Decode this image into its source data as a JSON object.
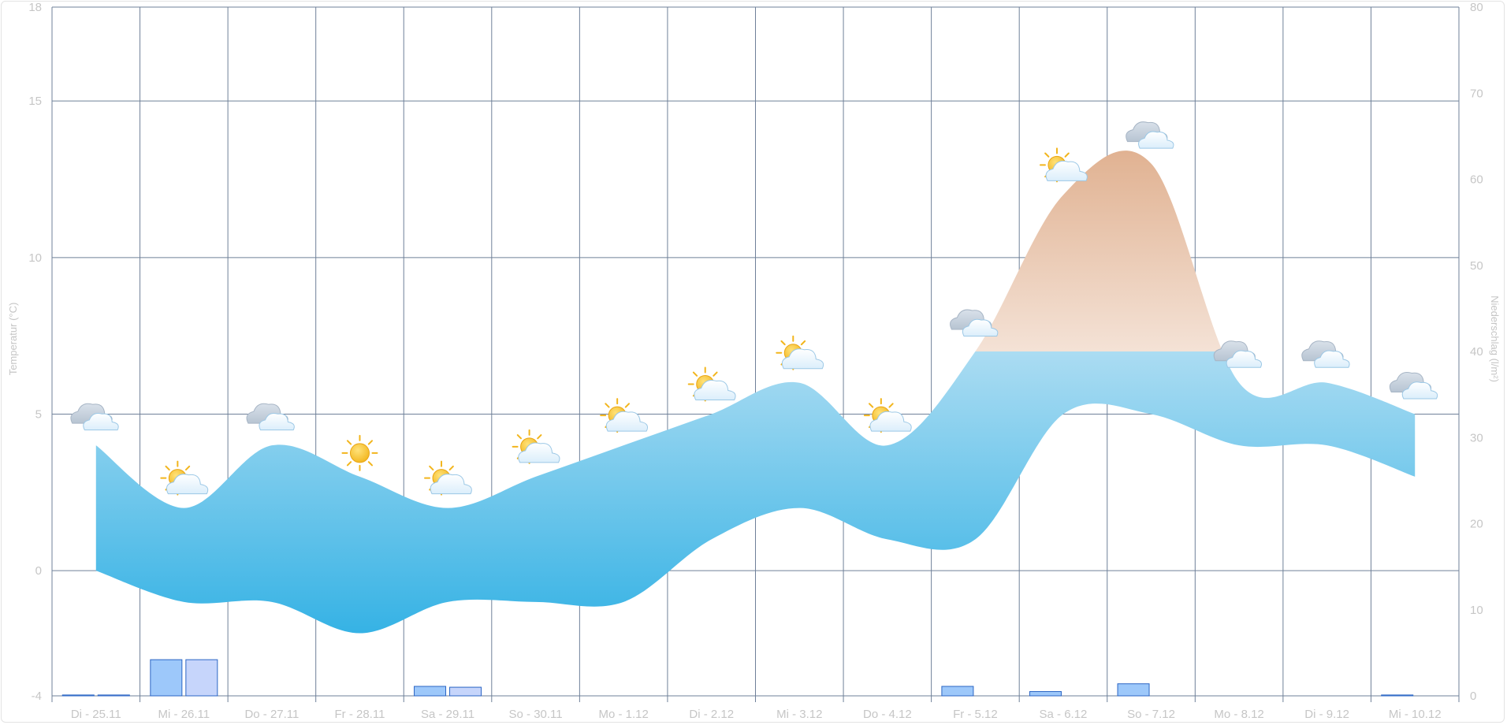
{
  "chart_data": {
    "type": "area-range",
    "title": "",
    "categories": [
      "Di - 25.11",
      "Mi - 26.11",
      "Do - 27.11",
      "Fr - 28.11",
      "Sa - 29.11",
      "So - 30.11",
      "Mo - 1.12",
      "Di - 2.12",
      "Mi - 3.12",
      "Do - 4.12",
      "Fr - 5.12",
      "Sa - 6.12",
      "So - 7.12",
      "Mo - 8.12",
      "Di - 9.12",
      "Mi - 10.12"
    ],
    "ylabel_left": "Temperatur (°C)",
    "ylabel_right": "Niederschlag (l/m²)",
    "ylim_left": [
      -4,
      18
    ],
    "ylim_right": [
      0,
      80
    ],
    "yticks_left": [
      -4,
      0,
      5,
      10,
      15,
      18
    ],
    "yticks_right": [
      0,
      10,
      20,
      30,
      40,
      50,
      60,
      70,
      80
    ],
    "grid": true,
    "series": [
      {
        "axis": "left",
        "kind": "range",
        "min": [
          0,
          -1,
          -1,
          -2,
          -1,
          -1,
          -1,
          1,
          2,
          1,
          1,
          5,
          5,
          4,
          4,
          3
        ],
        "max": [
          4,
          2,
          4,
          3,
          2,
          3,
          4,
          5,
          6,
          4,
          7,
          12,
          13,
          6,
          6,
          5
        ]
      },
      {
        "axis": "right",
        "kind": "bar",
        "color": "#9dc8fa",
        "values": [
          0.1,
          4.2,
          0,
          0,
          1.1,
          0,
          0,
          0,
          0,
          0,
          1.1,
          0.5,
          1.4,
          0,
          0,
          0.1
        ]
      },
      {
        "axis": "right",
        "kind": "bar",
        "color": "#c6d5fb",
        "values": [
          0.1,
          4.2,
          0,
          0,
          1.0,
          0,
          0,
          0,
          0,
          0,
          0,
          0,
          0,
          0,
          0,
          0
        ]
      }
    ],
    "weather_icons": [
      "cloudy",
      "partly-cloudy",
      "cloudy",
      "sunny",
      "partly-cloudy",
      "partly-cloudy",
      "partly-cloudy",
      "partly-cloudy",
      "partly-cloudy",
      "partly-cloudy",
      "cloudy",
      "partly-cloudy",
      "cloudy",
      "cloudy",
      "cloudy",
      "cloudy"
    ],
    "colors": {
      "range_cold_top": "#abdcf2",
      "range_cold_bottom": "#2fb0e4",
      "range_warm_top": "#d28e5f",
      "range_warm_bottom": "#f4e2d6",
      "grid": "#6f8099",
      "bar_border": "#2b65c4"
    }
  }
}
